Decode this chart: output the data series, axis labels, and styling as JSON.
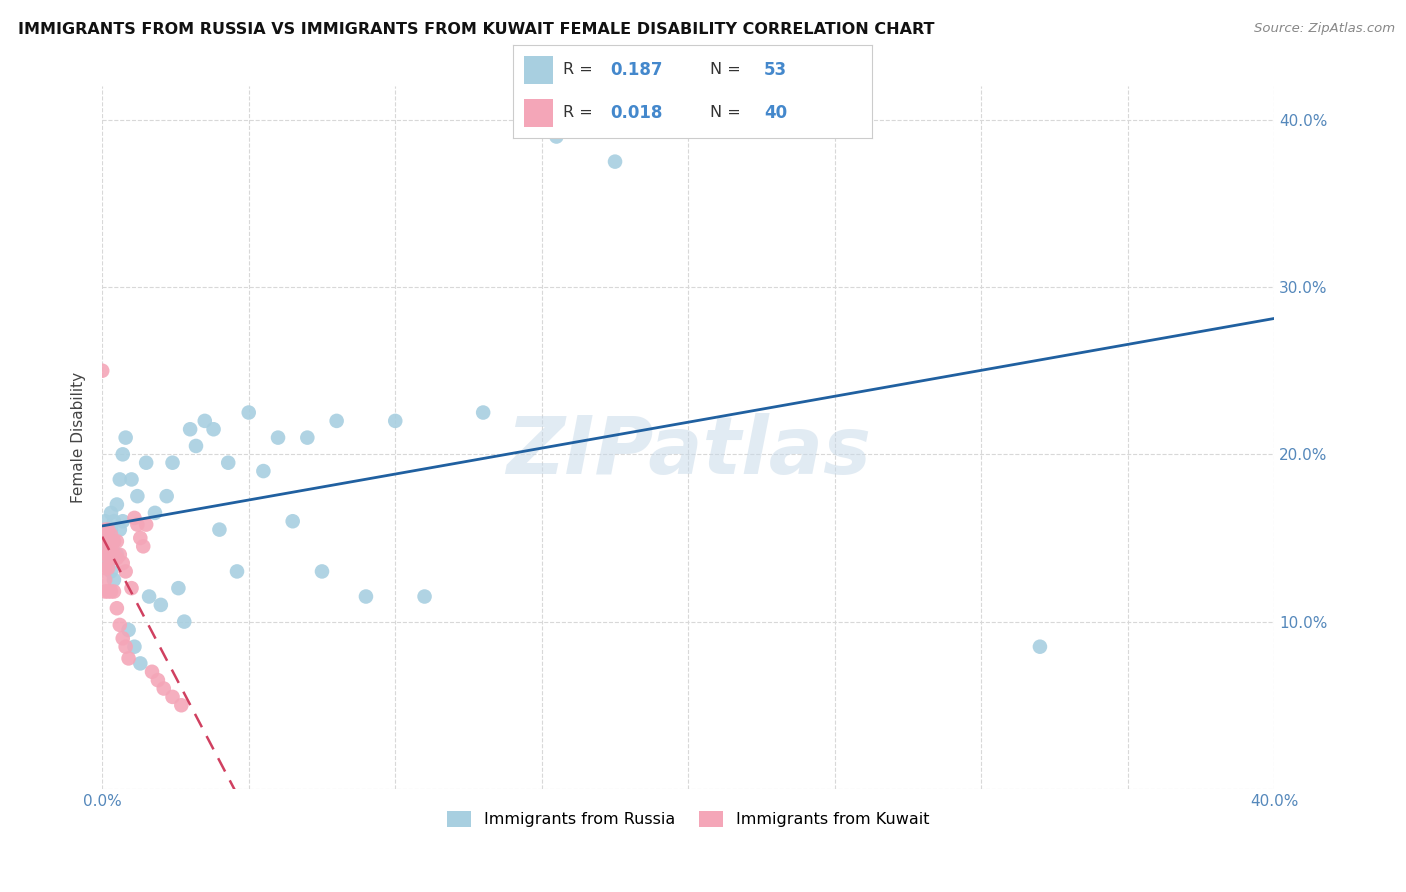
{
  "title": "IMMIGRANTS FROM RUSSIA VS IMMIGRANTS FROM KUWAIT FEMALE DISABILITY CORRELATION CHART",
  "source": "Source: ZipAtlas.com",
  "ylabel": "Female Disability",
  "xlim": [
    0.0,
    0.4
  ],
  "ylim": [
    0.0,
    0.42
  ],
  "russia_color": "#a8cfe0",
  "kuwait_color": "#f4a6b8",
  "russia_line_color": "#2060a0",
  "kuwait_line_color": "#d04060",
  "russia_R": 0.187,
  "russia_N": 53,
  "kuwait_R": 0.018,
  "kuwait_N": 40,
  "russia_x": [
    0.001,
    0.001,
    0.002,
    0.002,
    0.002,
    0.003,
    0.003,
    0.003,
    0.003,
    0.004,
    0.004,
    0.004,
    0.005,
    0.005,
    0.006,
    0.006,
    0.007,
    0.007,
    0.008,
    0.009,
    0.01,
    0.011,
    0.012,
    0.013,
    0.015,
    0.016,
    0.018,
    0.02,
    0.022,
    0.024,
    0.026,
    0.028,
    0.03,
    0.032,
    0.035,
    0.038,
    0.04,
    0.043,
    0.046,
    0.05,
    0.055,
    0.06,
    0.065,
    0.07,
    0.075,
    0.08,
    0.09,
    0.1,
    0.11,
    0.13,
    0.155,
    0.175,
    0.32
  ],
  "russia_y": [
    0.16,
    0.15,
    0.155,
    0.145,
    0.135,
    0.165,
    0.155,
    0.14,
    0.13,
    0.16,
    0.148,
    0.125,
    0.17,
    0.14,
    0.185,
    0.155,
    0.2,
    0.16,
    0.21,
    0.095,
    0.185,
    0.085,
    0.175,
    0.075,
    0.195,
    0.115,
    0.165,
    0.11,
    0.175,
    0.195,
    0.12,
    0.1,
    0.215,
    0.205,
    0.22,
    0.215,
    0.155,
    0.195,
    0.13,
    0.225,
    0.19,
    0.21,
    0.16,
    0.21,
    0.13,
    0.22,
    0.115,
    0.22,
    0.115,
    0.225,
    0.39,
    0.375,
    0.085
  ],
  "kuwait_x": [
    0.0,
    0.001,
    0.001,
    0.001,
    0.001,
    0.001,
    0.001,
    0.002,
    0.002,
    0.002,
    0.002,
    0.002,
    0.003,
    0.003,
    0.003,
    0.003,
    0.004,
    0.004,
    0.004,
    0.005,
    0.005,
    0.005,
    0.006,
    0.006,
    0.007,
    0.007,
    0.008,
    0.008,
    0.009,
    0.01,
    0.011,
    0.012,
    0.013,
    0.014,
    0.015,
    0.017,
    0.019,
    0.021,
    0.024,
    0.027
  ],
  "kuwait_y": [
    0.25,
    0.155,
    0.148,
    0.14,
    0.132,
    0.125,
    0.118,
    0.155,
    0.148,
    0.14,
    0.132,
    0.118,
    0.152,
    0.145,
    0.138,
    0.118,
    0.148,
    0.14,
    0.118,
    0.148,
    0.138,
    0.108,
    0.14,
    0.098,
    0.135,
    0.09,
    0.13,
    0.085,
    0.078,
    0.12,
    0.162,
    0.158,
    0.15,
    0.145,
    0.158,
    0.07,
    0.065,
    0.06,
    0.055,
    0.05
  ],
  "watermark": "ZIPatlas",
  "background_color": "#ffffff",
  "grid_color": "#d8d8d8"
}
